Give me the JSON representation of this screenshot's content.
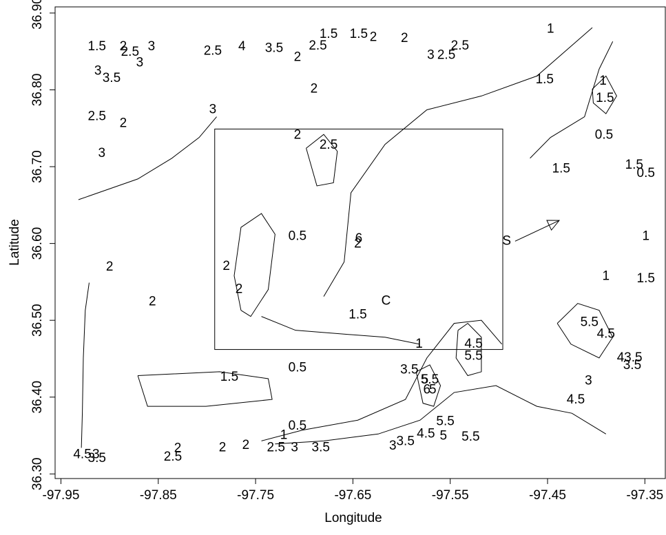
{
  "chart_data": {
    "type": "contour",
    "x_label": "Longitude",
    "y_label": "Latitude",
    "xlim": [
      -97.956,
      -97.329
    ],
    "ylim": [
      36.294,
      36.908
    ],
    "xticks": [
      -97.95,
      -97.85,
      -97.75,
      -97.65,
      -97.55,
      -97.45,
      -97.35
    ],
    "yticks": [
      {
        "value": 36.3,
        "label": "36.30"
      },
      {
        "value": 36.4,
        "label": "36.40"
      },
      {
        "value": 36.5,
        "label": "36.50"
      },
      {
        "value": 36.6,
        "label": "36.60"
      },
      {
        "value": 36.7,
        "label": "36.70"
      },
      {
        "value": 36.8,
        "label": "36.80"
      },
      {
        "value": 36.9,
        "label": "36.90"
      }
    ],
    "contours": [
      {
        "x": [
          -97.921,
          -97.925,
          -97.927,
          -97.928,
          -97.929
        ],
        "y": [
          36.549,
          36.513,
          36.451,
          36.379,
          36.334
        ]
      },
      {
        "x": [
          -97.871,
          -97.787,
          -97.737,
          -97.733,
          -97.801,
          -97.861,
          -97.871
        ],
        "y": [
          36.428,
          36.433,
          36.424,
          36.397,
          36.388,
          36.388,
          36.428
        ]
      },
      {
        "x": [
          -97.744,
          -97.702,
          -97.645,
          -97.596,
          -97.574,
          -97.546,
          -97.518,
          -97.497
        ],
        "y": [
          36.343,
          36.357,
          36.37,
          36.397,
          36.451,
          36.496,
          36.5,
          36.469
        ]
      },
      {
        "x": [
          -97.744,
          -97.709,
          -97.659,
          -97.617,
          -97.582
        ],
        "y": [
          36.505,
          36.487,
          36.482,
          36.478,
          36.469
        ]
      },
      {
        "x": [
          -97.68,
          -97.659,
          -97.652,
          -97.617,
          -97.574,
          -97.518,
          -97.461,
          -97.404
        ],
        "y": [
          36.531,
          36.576,
          36.666,
          36.729,
          36.774,
          36.792,
          36.818,
          36.881
        ]
      },
      {
        "x": [
          -97.698,
          -97.68,
          -97.666,
          -97.67,
          -97.687,
          -97.698
        ],
        "y": [
          36.724,
          36.742,
          36.72,
          36.679,
          36.675,
          36.724
        ]
      },
      {
        "x": [
          -97.44,
          -97.419,
          -97.397,
          -97.383,
          -97.397,
          -97.426,
          -97.44
        ],
        "y": [
          36.496,
          36.522,
          36.513,
          36.478,
          36.451,
          36.469,
          36.496
        ]
      },
      {
        "x": [
          -97.542,
          -97.532,
          -97.518,
          -97.518,
          -97.532,
          -97.544,
          -97.542
        ],
        "y": [
          36.487,
          36.496,
          36.478,
          36.433,
          36.428,
          36.451,
          36.487
        ]
      },
      {
        "x": [
          -97.585,
          -97.571,
          -97.56,
          -97.567,
          -97.578,
          -97.585
        ],
        "y": [
          36.433,
          36.442,
          36.415,
          36.388,
          36.392,
          36.433
        ]
      },
      {
        "x": [
          -97.932,
          -97.871,
          -97.836,
          -97.808,
          -97.79
        ],
        "y": [
          36.657,
          36.684,
          36.711,
          36.738,
          36.765
        ]
      },
      {
        "x": [
          -97.765,
          -97.772,
          -97.765,
          -97.744,
          -97.73,
          -97.737,
          -97.755,
          -97.765
        ],
        "y": [
          36.513,
          36.558,
          36.621,
          36.639,
          36.612,
          36.54,
          36.505,
          36.513
        ]
      },
      {
        "x": [
          -97.468,
          -97.447,
          -97.412,
          -97.397,
          -97.383
        ],
        "y": [
          36.711,
          36.738,
          36.765,
          36.827,
          36.863
        ]
      },
      {
        "x": [
          -97.73,
          -97.68,
          -97.624,
          -97.581,
          -97.546,
          -97.503,
          -97.461,
          -97.425,
          -97.39
        ],
        "y": [
          36.339,
          36.343,
          36.352,
          36.37,
          36.406,
          36.415,
          36.388,
          36.379,
          36.352
        ]
      },
      {
        "x": [
          -97.404,
          -97.39,
          -97.379,
          -97.39,
          -97.403,
          -97.404
        ],
        "y": [
          36.801,
          36.818,
          36.792,
          36.769,
          36.783,
          36.801
        ]
      }
    ],
    "box": {
      "x": [
        -97.792,
        -97.496
      ],
      "y": [
        36.462,
        36.749
      ]
    },
    "arrow": {
      "x": [
        -97.489,
        -97.438
      ],
      "y": [
        36.603,
        36.63
      ]
    },
    "labels": [
      {
        "text": "1.5",
        "x": -97.913,
        "y": 36.856
      },
      {
        "text": "2",
        "x": -97.886,
        "y": 36.856
      },
      {
        "text": "2.5",
        "x": -97.879,
        "y": 36.849
      },
      {
        "text": "3",
        "x": -97.857,
        "y": 36.856
      },
      {
        "text": "3",
        "x": -97.912,
        "y": 36.824
      },
      {
        "text": "3",
        "x": -97.869,
        "y": 36.835
      },
      {
        "text": "3.5",
        "x": -97.898,
        "y": 36.815
      },
      {
        "text": "2.5",
        "x": -97.913,
        "y": 36.765
      },
      {
        "text": "2",
        "x": -97.886,
        "y": 36.756
      },
      {
        "text": "3",
        "x": -97.908,
        "y": 36.717
      },
      {
        "text": "2.5",
        "x": -97.794,
        "y": 36.85
      },
      {
        "text": "4",
        "x": -97.764,
        "y": 36.856
      },
      {
        "text": "3.5",
        "x": -97.731,
        "y": 36.854
      },
      {
        "text": "2",
        "x": -97.707,
        "y": 36.842
      },
      {
        "text": "2.5",
        "x": -97.686,
        "y": 36.857
      },
      {
        "text": "1.5",
        "x": -97.675,
        "y": 36.872
      },
      {
        "text": "1.5",
        "x": -97.644,
        "y": 36.872
      },
      {
        "text": "2",
        "x": -97.629,
        "y": 36.868
      },
      {
        "text": "2",
        "x": -97.597,
        "y": 36.867
      },
      {
        "text": "3",
        "x": -97.57,
        "y": 36.845
      },
      {
        "text": "2.5",
        "x": -97.554,
        "y": 36.845
      },
      {
        "text": "2.5",
        "x": -97.54,
        "y": 36.857
      },
      {
        "text": "2",
        "x": -97.69,
        "y": 36.801
      },
      {
        "text": "3",
        "x": -97.794,
        "y": 36.774
      },
      {
        "text": "1",
        "x": -97.447,
        "y": 36.879
      },
      {
        "text": "1.5",
        "x": -97.453,
        "y": 36.813
      },
      {
        "text": "1",
        "x": -97.393,
        "y": 36.811
      },
      {
        "text": "1.5",
        "x": -97.391,
        "y": 36.789
      },
      {
        "text": "0.5",
        "x": -97.392,
        "y": 36.741
      },
      {
        "text": "2",
        "x": -97.707,
        "y": 36.741
      },
      {
        "text": "2.5",
        "x": -97.675,
        "y": 36.728
      },
      {
        "text": "1.5",
        "x": -97.436,
        "y": 36.697
      },
      {
        "text": "1.5",
        "x": -97.361,
        "y": 36.702
      },
      {
        "text": "0.5",
        "x": -97.349,
        "y": 36.691
      },
      {
        "text": "1",
        "x": -97.349,
        "y": 36.609
      },
      {
        "text": "0.5",
        "x": -97.707,
        "y": 36.609
      },
      {
        "text": "6",
        "x": -97.644,
        "y": 36.606
      },
      {
        "text": "2",
        "x": -97.645,
        "y": 36.599
      },
      {
        "text": "S",
        "x": -97.492,
        "y": 36.603
      },
      {
        "text": "2",
        "x": -97.9,
        "y": 36.569
      },
      {
        "text": "2",
        "x": -97.78,
        "y": 36.57
      },
      {
        "text": "2",
        "x": -97.767,
        "y": 36.54
      },
      {
        "text": "1",
        "x": -97.39,
        "y": 36.557
      },
      {
        "text": "1.5",
        "x": -97.349,
        "y": 36.554
      },
      {
        "text": "2",
        "x": -97.856,
        "y": 36.524
      },
      {
        "text": "C",
        "x": -97.616,
        "y": 36.525
      },
      {
        "text": "1.5",
        "x": -97.645,
        "y": 36.507
      },
      {
        "text": "1",
        "x": -97.582,
        "y": 36.469
      },
      {
        "text": "4.5",
        "x": -97.526,
        "y": 36.469
      },
      {
        "text": "5.5",
        "x": -97.526,
        "y": 36.453
      },
      {
        "text": "5.5",
        "x": -97.407,
        "y": 36.497
      },
      {
        "text": "4.5",
        "x": -97.39,
        "y": 36.482
      },
      {
        "text": "4",
        "x": -97.375,
        "y": 36.451
      },
      {
        "text": "3.5",
        "x": -97.362,
        "y": 36.451
      },
      {
        "text": "3.5",
        "x": -97.363,
        "y": 36.441
      },
      {
        "text": "3",
        "x": -97.408,
        "y": 36.421
      },
      {
        "text": "4.5",
        "x": -97.421,
        "y": 36.396
      },
      {
        "text": "1.5",
        "x": -97.777,
        "y": 36.426
      },
      {
        "text": "0.5",
        "x": -97.707,
        "y": 36.438
      },
      {
        "text": "3.5",
        "x": -97.592,
        "y": 36.435
      },
      {
        "text": "5",
        "x": -97.576,
        "y": 36.422
      },
      {
        "text": "5.5",
        "x": -97.571,
        "y": 36.422
      },
      {
        "text": "6",
        "x": -97.574,
        "y": 36.409
      },
      {
        "text": "5",
        "x": -97.568,
        "y": 36.409
      },
      {
        "text": "0.5",
        "x": -97.707,
        "y": 36.362
      },
      {
        "text": "5.5",
        "x": -97.555,
        "y": 36.368
      },
      {
        "text": "4.5",
        "x": -97.575,
        "y": 36.352
      },
      {
        "text": "5",
        "x": -97.557,
        "y": 36.349
      },
      {
        "text": "5.5",
        "x": -97.529,
        "y": 36.348
      },
      {
        "text": "1",
        "x": -97.721,
        "y": 36.35
      },
      {
        "text": "3",
        "x": -97.609,
        "y": 36.336
      },
      {
        "text": "3.5",
        "x": -97.596,
        "y": 36.342
      },
      {
        "text": "2",
        "x": -97.76,
        "y": 36.337
      },
      {
        "text": "2",
        "x": -97.784,
        "y": 36.334
      },
      {
        "text": "2.5",
        "x": -97.729,
        "y": 36.334
      },
      {
        "text": "3",
        "x": -97.71,
        "y": 36.334
      },
      {
        "text": "3.5",
        "x": -97.683,
        "y": 36.334
      },
      {
        "text": "2",
        "x": -97.83,
        "y": 36.333
      },
      {
        "text": "2.5",
        "x": -97.835,
        "y": 36.322
      },
      {
        "text": "4.5",
        "x": -97.928,
        "y": 36.325
      },
      {
        "text": "3",
        "x": -97.914,
        "y": 36.325
      },
      {
        "text": "3.5",
        "x": -97.913,
        "y": 36.32
      }
    ]
  }
}
